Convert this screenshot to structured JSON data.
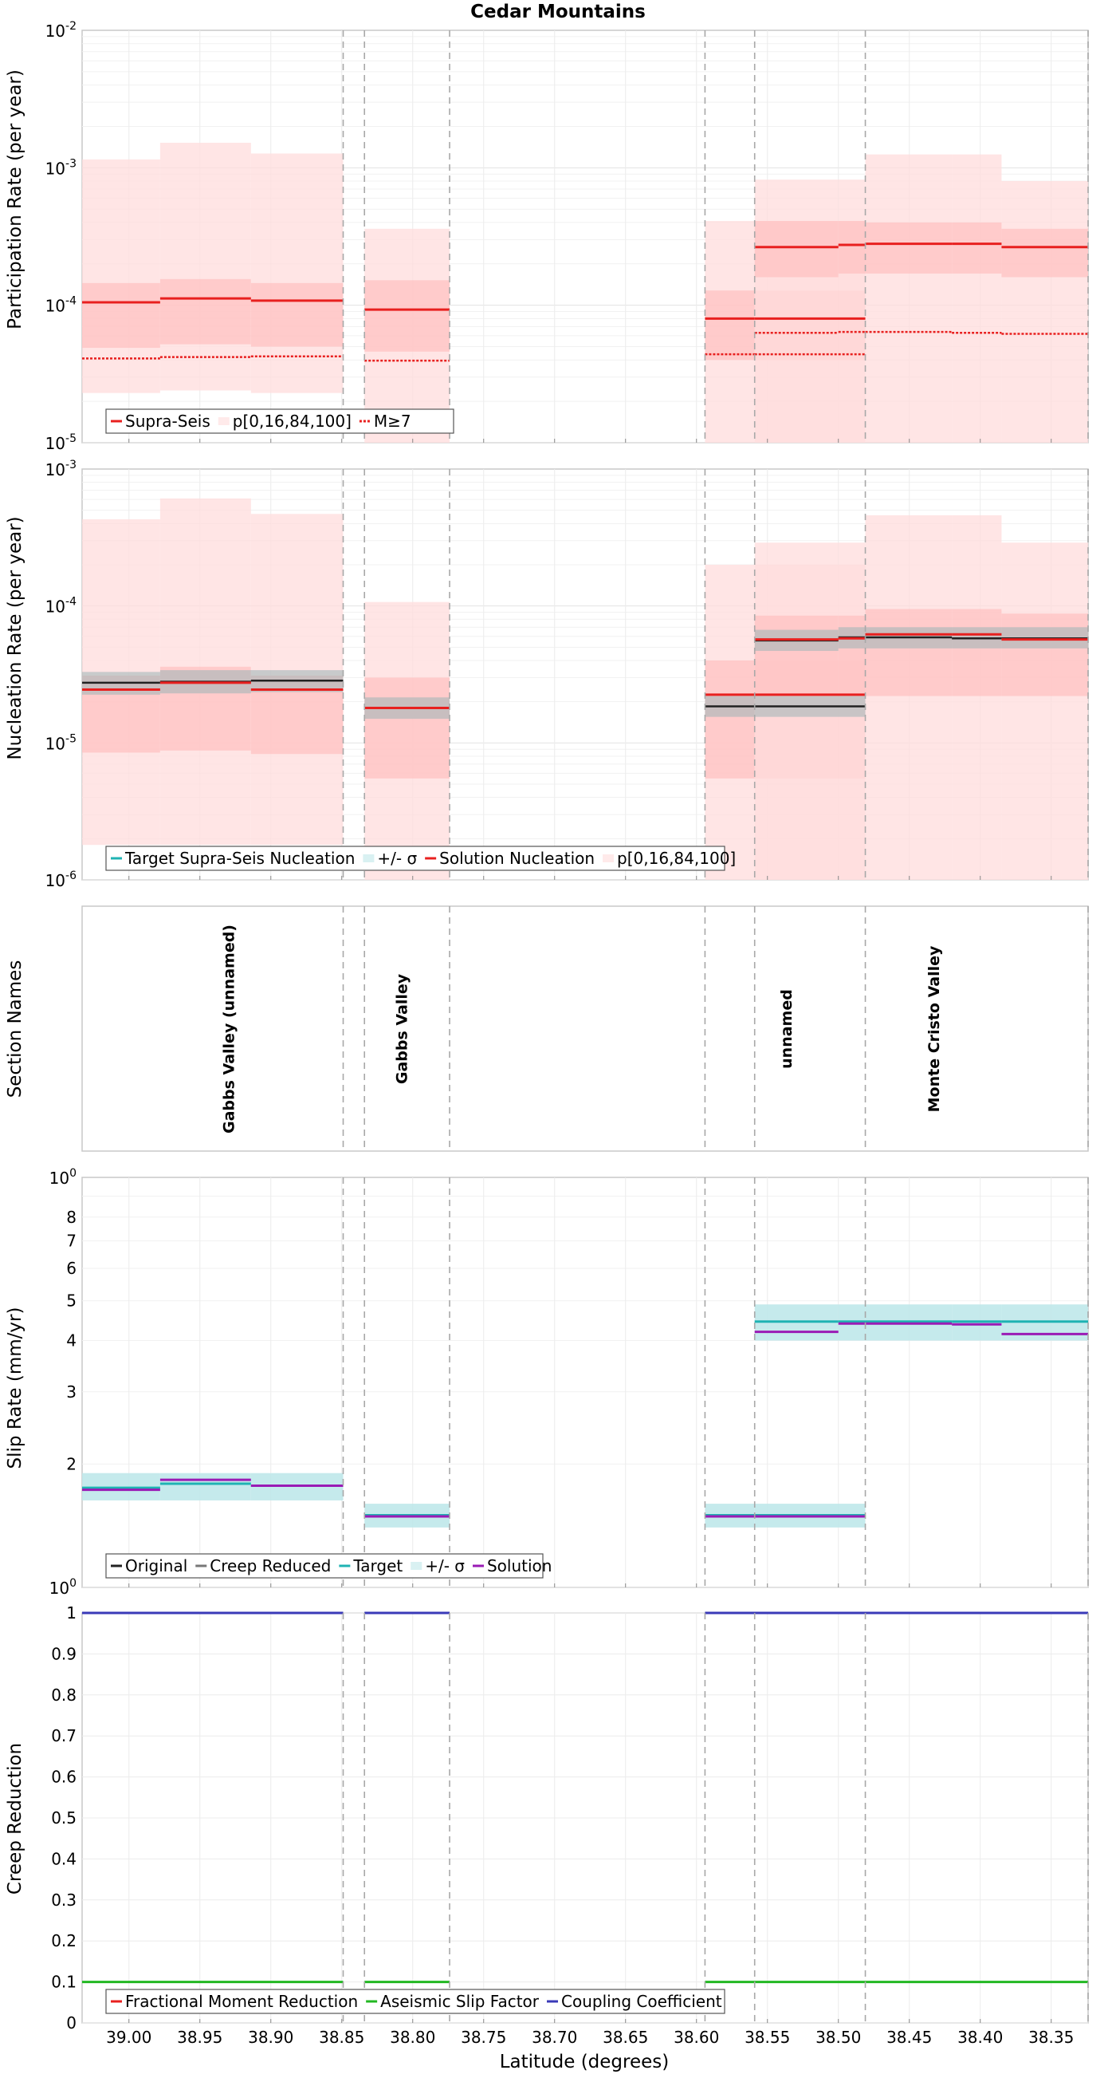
{
  "title": "Cedar Mountains",
  "x_axis": {
    "label": "Latitude (degrees)",
    "range": [
      39.033,
      38.324
    ],
    "ticks": [
      "39.00",
      "38.95",
      "38.90",
      "38.85",
      "38.80",
      "38.75",
      "38.70",
      "38.65",
      "38.60",
      "38.55",
      "38.50",
      "38.45",
      "38.40",
      "38.35"
    ],
    "tick_values": [
      39.0,
      38.95,
      38.9,
      38.85,
      38.8,
      38.75,
      38.7,
      38.65,
      38.6,
      38.55,
      38.5,
      38.45,
      38.4,
      38.35
    ]
  },
  "section_boundaries": [
    38.849,
    38.834,
    38.774,
    38.594,
    38.559,
    38.481,
    38.324
  ],
  "section_names": [
    {
      "name": "Gabbs Valley (unnamed)",
      "lat": 38.93
    },
    {
      "name": "Gabbs Valley",
      "lat": 38.808
    },
    {
      "name": "unnamed",
      "lat": 38.537
    },
    {
      "name": "Monte Cristo Valley",
      "lat": 38.433
    }
  ],
  "section_names_ylabel": "Section Names",
  "colors": {
    "red": "#e8201f",
    "cyan": "#1fb3b3",
    "cyan_band": "#bfe8ea",
    "purple": "#9a1bb5",
    "green": "#22b822",
    "blue": "#3a3ab8",
    "dark": "#222222",
    "gray": "#777777",
    "band_light": "#ffdcdc",
    "band_mid": "#ffc1c1",
    "band_dark": "#ffa8a8"
  },
  "chart_data": [
    {
      "type": "line",
      "name": "participation",
      "ylabel": "Participation Rate (per year)",
      "scale": "log",
      "ylim": [
        1e-05,
        0.01
      ],
      "y_tick_exponents": [
        -5,
        -4,
        -3,
        -2
      ],
      "legend": [
        "Supra-Seis",
        "p[0,16,84,100]",
        "M≥7"
      ],
      "segments": [
        {
          "x": [
            39.033,
            38.978
          ],
          "supra_seis": 0.000105,
          "m_ge_7": 4.1e-05,
          "p": [
            2.3e-05,
            4.9e-05,
            0.000145,
            0.00115
          ]
        },
        {
          "x": [
            38.978,
            38.914
          ],
          "supra_seis": 0.000112,
          "m_ge_7": 4.2e-05,
          "p": [
            2.4e-05,
            5.2e-05,
            0.000155,
            0.00152
          ]
        },
        {
          "x": [
            38.914,
            38.849
          ],
          "supra_seis": 0.000108,
          "m_ge_7": 4.25e-05,
          "p": [
            2.3e-05,
            5e-05,
            0.000145,
            0.00127
          ]
        },
        {
          "x": [
            38.834,
            38.774
          ],
          "supra_seis": 9.3e-05,
          "m_ge_7": 3.95e-05,
          "p": [
            1e-05,
            4.6e-05,
            0.000152,
            0.00036
          ]
        },
        {
          "x": [
            38.594,
            38.559
          ],
          "supra_seis": 8e-05,
          "m_ge_7": 4.4e-05,
          "p": [
            1e-05,
            4e-05,
            0.000128,
            0.00041
          ]
        },
        {
          "x": [
            38.559,
            38.481
          ],
          "supra_seis": 8e-05,
          "m_ge_7": 4.4e-05,
          "p": [
            1e-05,
            4e-05,
            0.000128,
            0.00041
          ]
        },
        {
          "x": [
            38.559,
            38.5
          ],
          "supra_seis": 0.000265,
          "m_ge_7": 6.3e-05,
          "p": [
            1e-05,
            0.00016,
            0.00041,
            0.00082
          ]
        },
        {
          "x": [
            38.5,
            38.481
          ],
          "supra_seis": 0.000275,
          "m_ge_7": 6.4e-05,
          "p": [
            1e-05,
            0.00017,
            0.00041,
            0.00082
          ]
        },
        {
          "x": [
            38.481,
            38.42
          ],
          "supra_seis": 0.00028,
          "m_ge_7": 6.4e-05,
          "p": [
            1e-05,
            0.00017,
            0.0004,
            0.00125
          ]
        },
        {
          "x": [
            38.42,
            38.385
          ],
          "supra_seis": 0.00028,
          "m_ge_7": 6.3e-05,
          "p": [
            1e-05,
            0.00017,
            0.0004,
            0.00125
          ]
        },
        {
          "x": [
            38.385,
            38.324
          ],
          "supra_seis": 0.000265,
          "m_ge_7": 6.2e-05,
          "p": [
            1e-05,
            0.00016,
            0.00036,
            0.0008
          ]
        }
      ]
    },
    {
      "type": "line",
      "name": "nucleation",
      "ylabel": "Nucleation Rate (per year)",
      "scale": "log",
      "ylim": [
        1e-06,
        0.001
      ],
      "y_tick_exponents": [
        -6,
        -5,
        -4,
        -3
      ],
      "legend": [
        "Target Supra-Seis Nucleation",
        "+/- σ",
        "Solution Nucleation",
        "p[0,16,84,100]"
      ],
      "segments": [
        {
          "x": [
            39.033,
            38.978
          ],
          "target": 2.75e-05,
          "sigma": [
            2.25e-05,
            3.3e-05
          ],
          "solution": 2.45e-05,
          "p": [
            1.8e-06,
            8.5e-06,
            3.1e-05,
            0.00043
          ]
        },
        {
          "x": [
            38.978,
            38.914
          ],
          "target": 2.8e-05,
          "sigma": [
            2.3e-05,
            3.4e-05
          ],
          "solution": 2.75e-05,
          "p": [
            1.8e-06,
            8.8e-06,
            3.6e-05,
            0.00061
          ]
        },
        {
          "x": [
            38.914,
            38.849
          ],
          "target": 2.85e-05,
          "sigma": [
            2.35e-05,
            3.4e-05
          ],
          "solution": 2.45e-05,
          "p": [
            1.8e-06,
            8.3e-06,
            3.1e-05,
            0.00047
          ]
        },
        {
          "x": [
            38.834,
            38.774
          ],
          "target": 1.8e-05,
          "sigma": [
            1.5e-05,
            2.15e-05
          ],
          "solution": 1.8e-05,
          "p": [
            1e-06,
            5.5e-06,
            3e-05,
            0.000107
          ]
        },
        {
          "x": [
            38.594,
            38.559
          ],
          "target": 1.85e-05,
          "sigma": [
            1.55e-05,
            2.2e-05
          ],
          "solution": 2.25e-05,
          "p": [
            1e-06,
            5.5e-06,
            4e-05,
            0.0002
          ]
        },
        {
          "x": [
            38.559,
            38.481
          ],
          "target": 1.85e-05,
          "sigma": [
            1.55e-05,
            2.2e-05
          ],
          "solution": 2.25e-05,
          "p": [
            1e-06,
            5.5e-06,
            4e-05,
            0.0002
          ]
        },
        {
          "x": [
            38.559,
            38.5
          ],
          "target": 5.6e-05,
          "sigma": [
            4.7e-05,
            6.7e-05
          ],
          "solution": 5.7e-05,
          "p": [
            1e-06,
            2.2e-05,
            8.5e-05,
            0.00029
          ]
        },
        {
          "x": [
            38.5,
            38.481
          ],
          "target": 5.9e-05,
          "sigma": [
            4.9e-05,
            7e-05
          ],
          "solution": 5.8e-05,
          "p": [
            1e-06,
            2.2e-05,
            8.5e-05,
            0.00029
          ]
        },
        {
          "x": [
            38.481,
            38.42
          ],
          "target": 5.9e-05,
          "sigma": [
            4.9e-05,
            7e-05
          ],
          "solution": 6.2e-05,
          "p": [
            1e-06,
            2.2e-05,
            9.5e-05,
            0.00046
          ]
        },
        {
          "x": [
            38.42,
            38.385
          ],
          "target": 5.8e-05,
          "sigma": [
            4.9e-05,
            7e-05
          ],
          "solution": 6.2e-05,
          "p": [
            1e-06,
            2.2e-05,
            9.5e-05,
            0.00046
          ]
        },
        {
          "x": [
            38.385,
            38.324
          ],
          "target": 5.8e-05,
          "sigma": [
            4.9e-05,
            7e-05
          ],
          "solution": 5.7e-05,
          "p": [
            1e-06,
            2.2e-05,
            8.8e-05,
            0.00029
          ]
        }
      ]
    },
    {
      "type": "line",
      "name": "slip_rate",
      "ylabel": "Slip Rate (mm/yr)",
      "scale": "log",
      "ylim": [
        1,
        10
      ],
      "y_ticks": [
        "2",
        "3",
        "4",
        "5",
        "6",
        "7",
        "8"
      ],
      "y_tick_values": [
        2,
        3,
        4,
        5,
        6,
        7,
        8
      ],
      "y_edge_exponents": [
        0,
        1
      ],
      "legend": [
        "Original",
        "Creep Reduced",
        "Target",
        "+/- σ",
        "Solution"
      ],
      "segments": [
        {
          "x": [
            39.033,
            38.978
          ],
          "target": 1.75,
          "sigma": [
            1.63,
            1.9
          ],
          "solution": 1.73
        },
        {
          "x": [
            38.978,
            38.914
          ],
          "target": 1.79,
          "sigma": [
            1.63,
            1.9
          ],
          "solution": 1.83
        },
        {
          "x": [
            38.914,
            38.849
          ],
          "target": 1.77,
          "sigma": [
            1.63,
            1.9
          ],
          "solution": 1.77
        },
        {
          "x": [
            38.834,
            38.774
          ],
          "target": 1.5,
          "sigma": [
            1.4,
            1.6
          ],
          "solution": 1.49
        },
        {
          "x": [
            38.594,
            38.559
          ],
          "target": 1.5,
          "sigma": [
            1.4,
            1.6
          ],
          "solution": 1.49
        },
        {
          "x": [
            38.559,
            38.481
          ],
          "target": 1.5,
          "sigma": [
            1.4,
            1.6
          ],
          "solution": 1.49
        },
        {
          "x": [
            38.559,
            38.5
          ],
          "target": 4.45,
          "sigma": [
            4.0,
            4.9
          ],
          "solution": 4.2
        },
        {
          "x": [
            38.5,
            38.481
          ],
          "target": 4.45,
          "sigma": [
            4.0,
            4.9
          ],
          "solution": 4.4
        },
        {
          "x": [
            38.481,
            38.42
          ],
          "target": 4.45,
          "sigma": [
            4.0,
            4.9
          ],
          "solution": 4.4
        },
        {
          "x": [
            38.42,
            38.385
          ],
          "target": 4.45,
          "sigma": [
            4.0,
            4.9
          ],
          "solution": 4.38
        },
        {
          "x": [
            38.385,
            38.324
          ],
          "target": 4.45,
          "sigma": [
            4.0,
            4.9
          ],
          "solution": 4.15
        }
      ]
    },
    {
      "type": "line",
      "name": "creep",
      "ylabel": "Creep Reduction",
      "scale": "linear",
      "ylim": [
        0,
        1
      ],
      "y_ticks": [
        "0",
        "0.1",
        "0.2",
        "0.3",
        "0.4",
        "0.5",
        "0.6",
        "0.7",
        "0.8",
        "0.9",
        "1"
      ],
      "y_tick_values": [
        0,
        0.1,
        0.2,
        0.3,
        0.4,
        0.5,
        0.6,
        0.7,
        0.8,
        0.9,
        1
      ],
      "legend": [
        "Fractional Moment Reduction",
        "Aseismic Slip Factor",
        "Coupling Coefficient"
      ],
      "segments": [
        {
          "x": [
            39.033,
            38.849
          ],
          "aseismic_slip_factor": 0.1,
          "coupling_coefficient": 1.0
        },
        {
          "x": [
            38.834,
            38.774
          ],
          "aseismic_slip_factor": 0.1,
          "coupling_coefficient": 1.0
        },
        {
          "x": [
            38.594,
            38.324
          ],
          "aseismic_slip_factor": 0.1,
          "coupling_coefficient": 1.0
        }
      ]
    }
  ]
}
